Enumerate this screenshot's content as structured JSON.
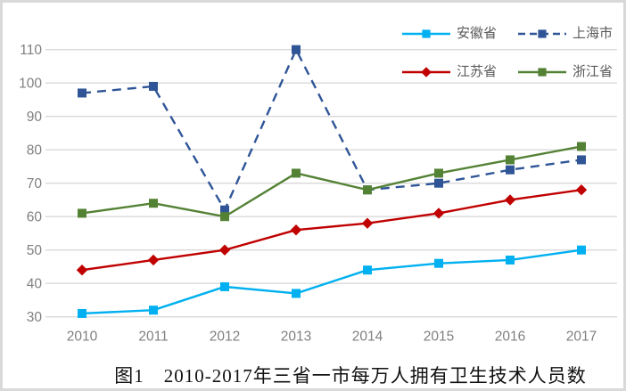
{
  "figure": {
    "title": "图1　2010-2017年三省一市每万人拥有卫生技术人员数"
  },
  "chart_data": {
    "type": "line",
    "title": "图1　2010-2017年三省一市每万人拥有卫生技术人员数",
    "categories": [
      "2010",
      "2011",
      "2012",
      "2013",
      "2014",
      "2015",
      "2016",
      "2017"
    ],
    "series": [
      {
        "key": "anhui",
        "name": "安徽省",
        "color": "#00B0F0",
        "line_style": "solid",
        "marker": "square",
        "values": [
          31,
          32,
          39,
          37,
          44,
          46,
          47,
          50
        ]
      },
      {
        "key": "shanghai",
        "name": "上海市",
        "color": "#2F5597",
        "line_style": "dashed",
        "marker": "square",
        "values": [
          97,
          99,
          62,
          110,
          68,
          70,
          74,
          77
        ]
      },
      {
        "key": "jiangsu",
        "name": "江苏省",
        "color": "#C00000",
        "line_style": "solid",
        "marker": "diamond",
        "values": [
          44,
          47,
          50,
          56,
          58,
          61,
          65,
          68
        ]
      },
      {
        "key": "zhejiang",
        "name": "浙江省",
        "color": "#548235",
        "line_style": "solid",
        "marker": "square",
        "values": [
          61,
          64,
          60,
          73,
          68,
          73,
          77,
          81
        ]
      }
    ],
    "xlabel": "",
    "ylabel": "",
    "ylim": [
      30,
      110
    ],
    "y_ticks": [
      30,
      40,
      50,
      60,
      70,
      80,
      90,
      100,
      110
    ],
    "grid": true,
    "legend_position": "top-right",
    "legend_rows": [
      [
        "安徽省",
        "上海市"
      ],
      [
        "江苏省",
        "浙江省"
      ]
    ]
  },
  "colors": {
    "gridline": "#D9D9D9",
    "axis_text": "#7F7F7F",
    "legend_text": "#595959",
    "title_text": "#111111",
    "background": "#FFFFFF",
    "frame_border": "#D9D9D9"
  }
}
